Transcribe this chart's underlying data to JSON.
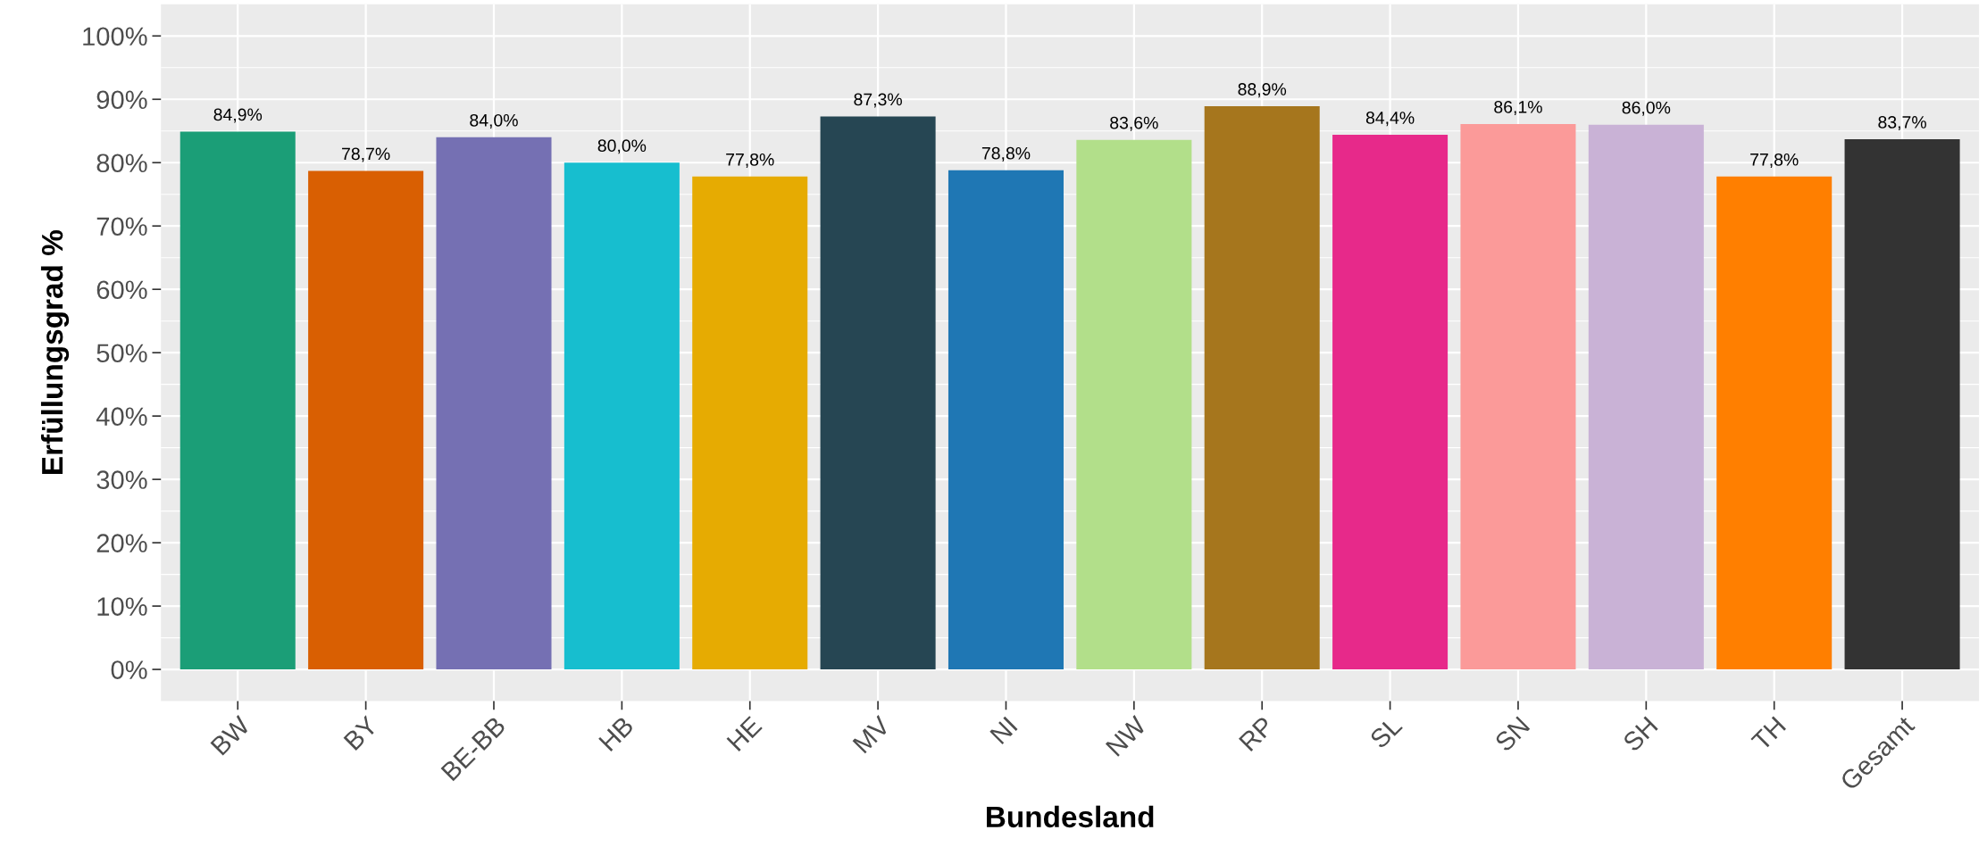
{
  "chart_data": {
    "type": "bar",
    "xlabel": "Bundesland",
    "ylabel": "Erfüllungsgrad %",
    "categories": [
      "BW",
      "BY",
      "BE-BB",
      "HB",
      "HE",
      "MV",
      "NI",
      "NW",
      "RP",
      "SL",
      "SN",
      "SH",
      "TH",
      "Gesamt"
    ],
    "values": [
      84.9,
      78.7,
      84.0,
      80.0,
      77.8,
      87.3,
      78.8,
      83.6,
      88.9,
      84.4,
      86.1,
      86.0,
      77.8,
      83.7
    ],
    "colors": [
      "#1b9e77",
      "#d95f02",
      "#7570b3",
      "#17becf",
      "#e6ab02",
      "#264653",
      "#1f77b4",
      "#b2df8a",
      "#a6761d",
      "#e7298a",
      "#fb9a99",
      "#c9b2d6",
      "#ff7f00",
      "#333333"
    ],
    "value_labels": [
      "84,9%",
      "78,7%",
      "84,0%",
      "80,0%",
      "77,8%",
      "87,3%",
      "78,8%",
      "83,6%",
      "88,9%",
      "84,4%",
      "86,1%",
      "86,0%",
      "77,8%",
      "83,7%"
    ],
    "ylim": [
      -5,
      105
    ],
    "yticks": [
      {
        "value": 0,
        "label": "0%"
      },
      {
        "value": 10,
        "label": "10%"
      },
      {
        "value": 20,
        "label": "20%"
      },
      {
        "value": 30,
        "label": "30%"
      },
      {
        "value": 40,
        "label": "40%"
      },
      {
        "value": 50,
        "label": "50%"
      },
      {
        "value": 60,
        "label": "60%"
      },
      {
        "value": 70,
        "label": "70%"
      },
      {
        "value": 80,
        "label": "80%"
      },
      {
        "value": 90,
        "label": "90%"
      },
      {
        "value": 100,
        "label": "100%"
      }
    ],
    "grid": true,
    "legend": false
  }
}
